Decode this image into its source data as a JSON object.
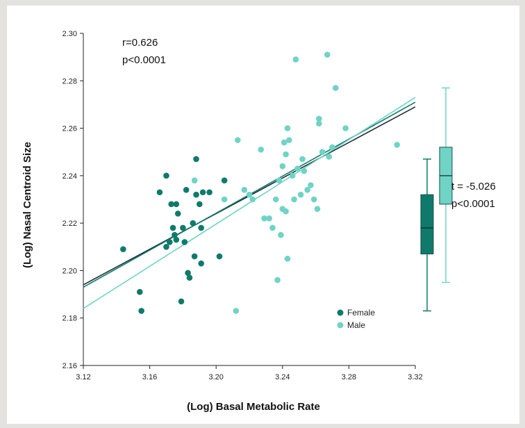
{
  "chart_data": {
    "type": "scatter",
    "xlabel": "(Log) Basal Metabolic Rate",
    "ylabel": "(Log) Nasal Centroid Size",
    "xlim": [
      3.12,
      3.32
    ],
    "ylim": [
      2.16,
      2.3
    ],
    "x_ticks": [
      "3.12",
      "3.16",
      "3.20",
      "3.24",
      "3.28",
      "3.32"
    ],
    "y_ticks": [
      "2.16",
      "2.18",
      "2.20",
      "2.22",
      "2.24",
      "2.26",
      "2.28",
      "2.30"
    ],
    "annotations": {
      "correlation_r": "r=0.626",
      "correlation_p": "p<0.0001",
      "ttest_t": "t = -5.026",
      "ttest_p": "p<0.0001"
    },
    "legend": {
      "position": "bottom-right",
      "entries": [
        "Female",
        "Male"
      ]
    },
    "colors": {
      "female": "#0f7a6c",
      "male": "#6fd3c6",
      "overall_line": "#1f2f3a"
    },
    "series": [
      {
        "name": "Female",
        "points": [
          [
            3.144,
            2.209
          ],
          [
            3.154,
            2.191
          ],
          [
            3.155,
            2.183
          ],
          [
            3.166,
            2.233
          ],
          [
            3.17,
            2.21
          ],
          [
            3.17,
            2.24
          ],
          [
            3.172,
            2.212
          ],
          [
            3.173,
            2.228
          ],
          [
            3.174,
            2.218
          ],
          [
            3.175,
            2.215
          ],
          [
            3.176,
            2.228
          ],
          [
            3.176,
            2.213
          ],
          [
            3.177,
            2.224
          ],
          [
            3.179,
            2.187
          ],
          [
            3.18,
            2.218
          ],
          [
            3.181,
            2.212
          ],
          [
            3.182,
            2.234
          ],
          [
            3.183,
            2.199
          ],
          [
            3.184,
            2.197
          ],
          [
            3.186,
            2.22
          ],
          [
            3.187,
            2.206
          ],
          [
            3.188,
            2.247
          ],
          [
            3.188,
            2.232
          ],
          [
            3.19,
            2.228
          ],
          [
            3.191,
            2.203
          ],
          [
            3.191,
            2.218
          ],
          [
            3.192,
            2.233
          ],
          [
            3.196,
            2.233
          ],
          [
            3.202,
            2.206
          ],
          [
            3.205,
            2.238
          ]
        ],
        "boxplot": {
          "min": 2.183,
          "q1": 2.207,
          "median": 2.218,
          "q3": 2.232,
          "max": 2.247
        }
      },
      {
        "name": "Male",
        "points": [
          [
            3.187,
            2.238
          ],
          [
            3.205,
            2.23
          ],
          [
            3.212,
            2.183
          ],
          [
            3.213,
            2.255
          ],
          [
            3.217,
            2.234
          ],
          [
            3.22,
            2.232
          ],
          [
            3.222,
            2.23
          ],
          [
            3.227,
            2.251
          ],
          [
            3.229,
            2.222
          ],
          [
            3.232,
            2.222
          ],
          [
            3.234,
            2.218
          ],
          [
            3.236,
            2.23
          ],
          [
            3.237,
            2.196
          ],
          [
            3.238,
            2.238
          ],
          [
            3.239,
            2.215
          ],
          [
            3.24,
            2.226
          ],
          [
            3.24,
            2.244
          ],
          [
            3.241,
            2.254
          ],
          [
            3.242,
            2.225
          ],
          [
            3.242,
            2.249
          ],
          [
            3.243,
            2.26
          ],
          [
            3.243,
            2.205
          ],
          [
            3.244,
            2.255
          ],
          [
            3.246,
            2.24
          ],
          [
            3.247,
            2.23
          ],
          [
            3.248,
            2.289
          ],
          [
            3.249,
            2.243
          ],
          [
            3.251,
            2.232
          ],
          [
            3.252,
            2.247
          ],
          [
            3.253,
            2.242
          ],
          [
            3.255,
            2.234
          ],
          [
            3.257,
            2.236
          ],
          [
            3.259,
            2.23
          ],
          [
            3.261,
            2.226
          ],
          [
            3.262,
            2.262
          ],
          [
            3.262,
            2.264
          ],
          [
            3.264,
            2.25
          ],
          [
            3.267,
            2.291
          ],
          [
            3.268,
            2.248
          ],
          [
            3.27,
            2.252
          ],
          [
            3.272,
            2.277
          ],
          [
            3.278,
            2.26
          ],
          [
            3.309,
            2.253
          ]
        ],
        "boxplot": {
          "min": 2.195,
          "q1": 2.228,
          "median": 2.24,
          "q3": 2.252,
          "max": 2.277
        }
      }
    ],
    "regression_lines": [
      {
        "name": "Overall",
        "x": [
          3.12,
          3.32
        ],
        "y": [
          2.194,
          2.269
        ]
      },
      {
        "name": "Female",
        "x": [
          3.12,
          3.32
        ],
        "y": [
          2.193,
          2.271
        ]
      },
      {
        "name": "Male",
        "x": [
          3.12,
          3.32
        ],
        "y": [
          2.184,
          2.273
        ]
      }
    ]
  }
}
